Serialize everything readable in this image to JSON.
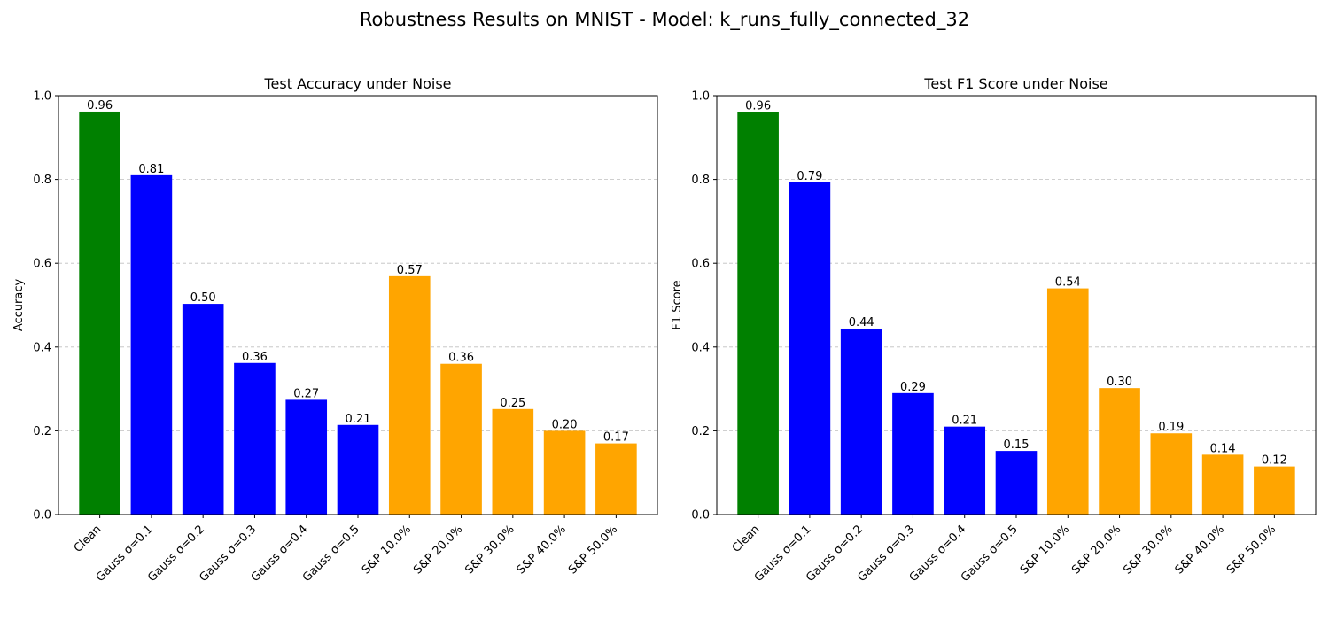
{
  "figure": {
    "suptitle": "Robustness Results on MNIST - Model: k_runs_fully_connected_32"
  },
  "chart_data": [
    {
      "type": "bar",
      "title": "Test Accuracy under Noise",
      "xlabel": "",
      "ylabel": "Accuracy",
      "ylim": [
        0,
        1.0
      ],
      "yticks": [
        "0.0",
        "0.2",
        "0.4",
        "0.6",
        "0.8",
        "1.0"
      ],
      "grid": "y-dashed",
      "categories": [
        "Clean",
        "Gauss σ=0.1",
        "Gauss σ=0.2",
        "Gauss σ=0.3",
        "Gauss σ=0.4",
        "Gauss σ=0.5",
        "S&P 10.0%",
        "S&P 20.0%",
        "S&P 30.0%",
        "S&P 40.0%",
        "S&P 50.0%"
      ],
      "values": [
        0.962,
        0.81,
        0.503,
        0.362,
        0.274,
        0.214,
        0.569,
        0.36,
        0.252,
        0.2,
        0.17
      ],
      "data_labels": [
        "0.96",
        "0.81",
        "0.50",
        "0.36",
        "0.27",
        "0.21",
        "0.57",
        "0.36",
        "0.25",
        "0.20",
        "0.17"
      ],
      "bar_colors": [
        "#008000",
        "#0000ff",
        "#0000ff",
        "#0000ff",
        "#0000ff",
        "#0000ff",
        "#ffa500",
        "#ffa500",
        "#ffa500",
        "#ffa500",
        "#ffa500"
      ]
    },
    {
      "type": "bar",
      "title": "Test F1 Score under Noise",
      "xlabel": "",
      "ylabel": "F1 Score",
      "ylim": [
        0,
        1.0
      ],
      "yticks": [
        "0.0",
        "0.2",
        "0.4",
        "0.6",
        "0.8",
        "1.0"
      ],
      "grid": "y-dashed",
      "categories": [
        "Clean",
        "Gauss σ=0.1",
        "Gauss σ=0.2",
        "Gauss σ=0.3",
        "Gauss σ=0.4",
        "Gauss σ=0.5",
        "S&P 10.0%",
        "S&P 20.0%",
        "S&P 30.0%",
        "S&P 40.0%",
        "S&P 50.0%"
      ],
      "values": [
        0.961,
        0.793,
        0.444,
        0.29,
        0.21,
        0.152,
        0.54,
        0.302,
        0.194,
        0.143,
        0.115
      ],
      "data_labels": [
        "0.96",
        "0.79",
        "0.44",
        "0.29",
        "0.21",
        "0.15",
        "0.54",
        "0.30",
        "0.19",
        "0.14",
        "0.12"
      ],
      "bar_colors": [
        "#008000",
        "#0000ff",
        "#0000ff",
        "#0000ff",
        "#0000ff",
        "#0000ff",
        "#ffa500",
        "#ffa500",
        "#ffa500",
        "#ffa500",
        "#ffa500"
      ]
    }
  ]
}
